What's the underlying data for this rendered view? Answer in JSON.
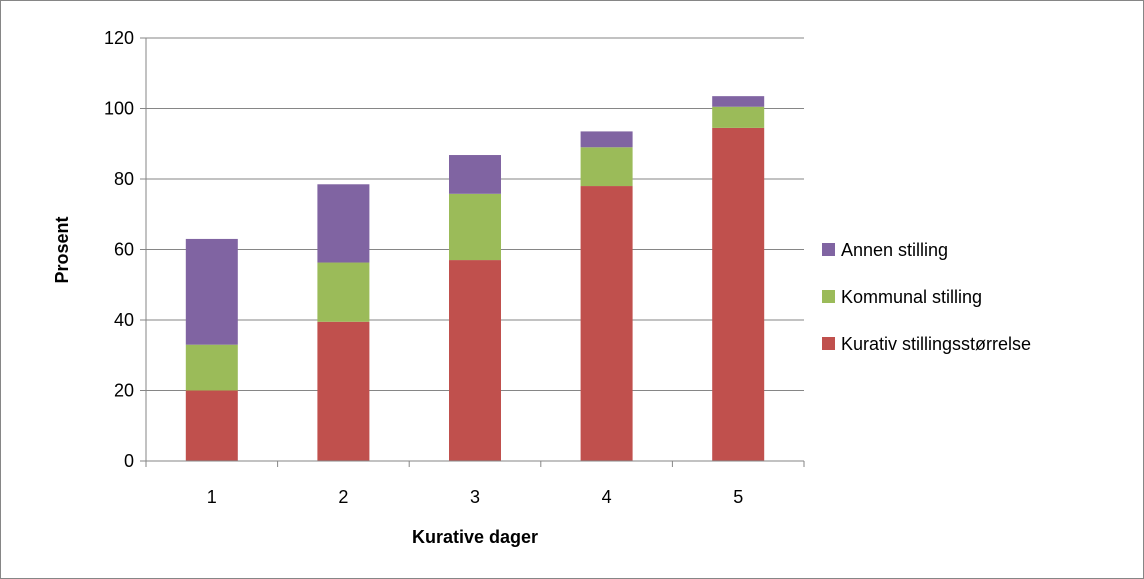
{
  "chart_data": {
    "type": "bar",
    "stacked": true,
    "categories": [
      "1",
      "2",
      "3",
      "4",
      "5"
    ],
    "series": [
      {
        "name": "Kurativ stillingsstørrelse",
        "color": "#c0504d",
        "values": [
          20,
          39.5,
          57,
          78,
          94.5
        ]
      },
      {
        "name": "Kommunal stilling",
        "color": "#9bbb59",
        "values": [
          13,
          16.8,
          18.8,
          11,
          6
        ]
      },
      {
        "name": "Annen stilling",
        "color": "#8064a2",
        "values": [
          30,
          22.2,
          11,
          4.5,
          3
        ]
      }
    ],
    "title": "",
    "xlabel": "Kurative dager",
    "ylabel": "Prosent",
    "ylim": [
      0,
      120
    ],
    "yticks": [
      "0",
      "20",
      "40",
      "60",
      "80",
      "100",
      "120"
    ],
    "grid": true,
    "legend_position": "right",
    "legend_order": [
      "Annen stilling",
      "Kommunal stilling",
      "Kurativ stillingsstørrelse"
    ]
  }
}
